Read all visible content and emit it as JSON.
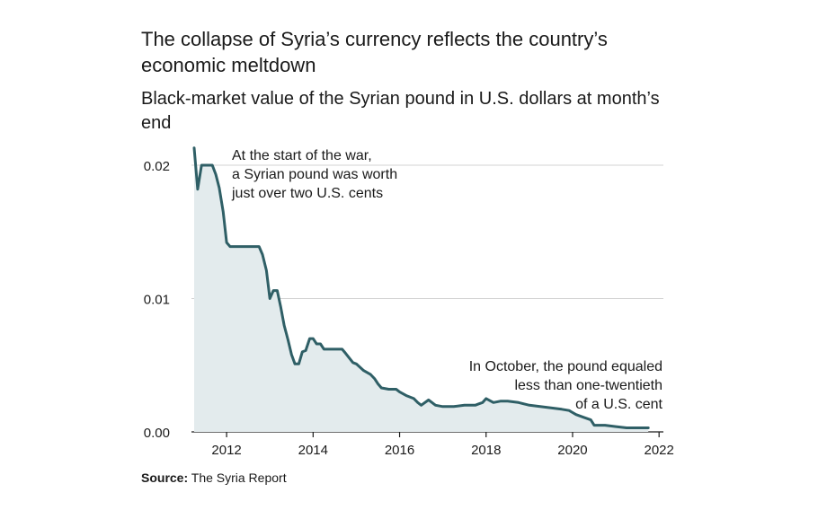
{
  "chart_data": {
    "type": "area",
    "title": "The collapse of Syria’s currency reflects the country’s economic meltdown",
    "subtitle": "Black-market value of the Syrian pound in U.S. dollars at month’s end",
    "xlabel": "",
    "ylabel": "",
    "xlim": [
      2011.0,
      2022.1
    ],
    "ylim": [
      0,
      0.021
    ],
    "x_ticks": [
      "2012",
      "2014",
      "2016",
      "2018",
      "2020",
      "2022"
    ],
    "y_ticks": [
      "0.00",
      "0.01",
      "0.02"
    ],
    "grid": "horizontal",
    "colors": {
      "line": "#2f5f66",
      "fill": "#e3ebed",
      "grid": "#d3d3d3"
    },
    "series": [
      {
        "x": [
          2011.25,
          2011.33,
          2011.42,
          2011.5,
          2011.58,
          2011.67,
          2011.75,
          2011.83,
          2011.92,
          2012.0,
          2012.08,
          2012.17,
          2012.25,
          2012.5,
          2012.75,
          2012.83,
          2012.92,
          2013.0,
          2013.08,
          2013.17,
          2013.25,
          2013.33,
          2013.42,
          2013.5,
          2013.58,
          2013.67,
          2013.75,
          2013.83,
          2013.92,
          2014.0,
          2014.08,
          2014.17,
          2014.25,
          2014.5,
          2014.67,
          2014.75,
          2014.92,
          2015.0,
          2015.17,
          2015.33,
          2015.42,
          2015.5,
          2015.58,
          2015.75,
          2015.92,
          2016.0,
          2016.17,
          2016.25,
          2016.33,
          2016.42,
          2016.5,
          2016.67,
          2016.83,
          2017.0,
          2017.25,
          2017.5,
          2017.75,
          2017.83,
          2017.92,
          2018.0,
          2018.17,
          2018.33,
          2018.5,
          2018.75,
          2019.0,
          2019.25,
          2019.5,
          2019.75,
          2019.92,
          2020.08,
          2020.25,
          2020.42,
          2020.5,
          2020.75,
          2021.0,
          2021.25,
          2021.5,
          2021.75
        ],
        "values": [
          0.0213,
          0.0182,
          0.02,
          0.02,
          0.02,
          0.02,
          0.0193,
          0.0183,
          0.0165,
          0.0142,
          0.0139,
          0.0139,
          0.0139,
          0.0139,
          0.0139,
          0.0133,
          0.0121,
          0.01,
          0.0106,
          0.0106,
          0.0094,
          0.008,
          0.0069,
          0.0058,
          0.0051,
          0.0051,
          0.006,
          0.0061,
          0.007,
          0.007,
          0.0066,
          0.0066,
          0.0062,
          0.0062,
          0.0062,
          0.0059,
          0.0052,
          0.0051,
          0.0046,
          0.0043,
          0.004,
          0.0036,
          0.0033,
          0.0032,
          0.0032,
          0.003,
          0.0027,
          0.0026,
          0.0025,
          0.0022,
          0.002,
          0.0024,
          0.002,
          0.0019,
          0.0019,
          0.002,
          0.002,
          0.0021,
          0.0022,
          0.0025,
          0.0022,
          0.0023,
          0.0023,
          0.0022,
          0.002,
          0.0019,
          0.0018,
          0.0017,
          0.0016,
          0.0013,
          0.0011,
          0.0009,
          0.0005,
          0.0005,
          0.0004,
          0.0003,
          0.0003,
          0.0003
        ]
      }
    ],
    "annotations": [
      {
        "lines": [
          "At the start of the war,",
          "a Syrian pound was worth",
          "just over two U.S. cents"
        ],
        "align": "left"
      },
      {
        "lines": [
          "In October, the pound equaled",
          "less than one-twentieth",
          "of a U.S. cent"
        ],
        "align": "right"
      }
    ]
  },
  "source": {
    "label": "Source:",
    "text": " The Syria Report"
  }
}
